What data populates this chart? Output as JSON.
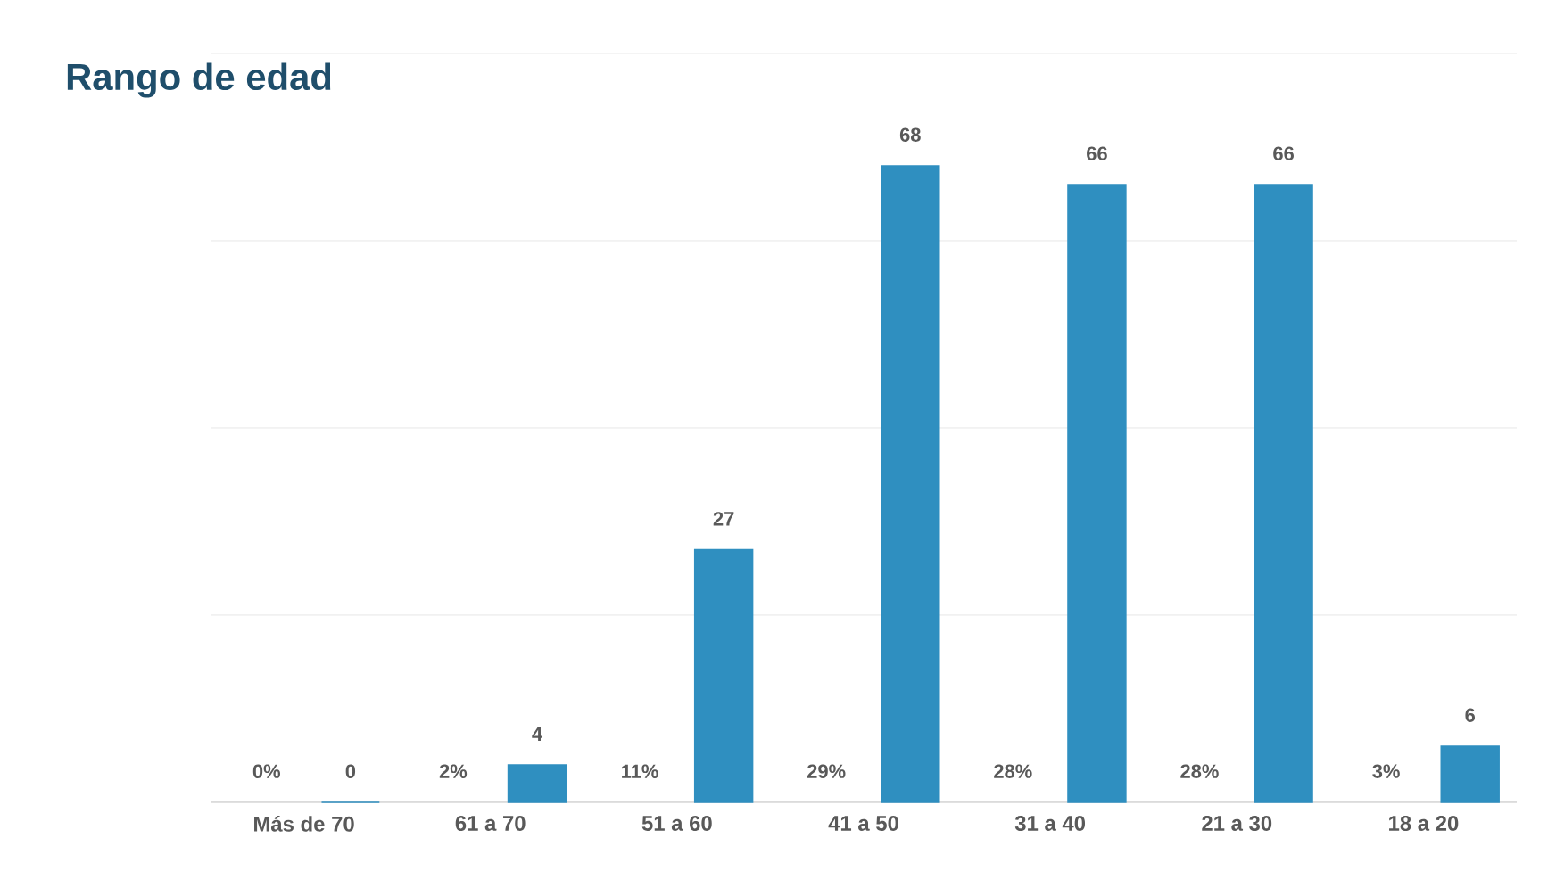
{
  "chart_data": {
    "type": "bar",
    "title": "Rango de edad",
    "categories": [
      "Más de 70",
      "61 a 70",
      "51 a 60",
      "41 a 50",
      "31 a 40",
      "21 a 30",
      "18 a 20"
    ],
    "values": [
      0,
      4,
      27,
      68,
      66,
      66,
      6
    ],
    "color": "#2f8fc0",
    "data_labels": true,
    "ylim": [
      0,
      80
    ],
    "yticks": [
      {
        "value": 0,
        "label": null
      },
      {
        "value": 20,
        "label": null
      },
      {
        "value": 40,
        "label": null
      },
      {
        "value": 60,
        "label": null
      },
      {
        "value": 80,
        "label": null
      }
    ],
    "tick_labels": "x",
    "grid": "y",
    "annotations": [
      "0%",
      "2%",
      "11%",
      "29%",
      "28%",
      "28%",
      "3%"
    ]
  }
}
